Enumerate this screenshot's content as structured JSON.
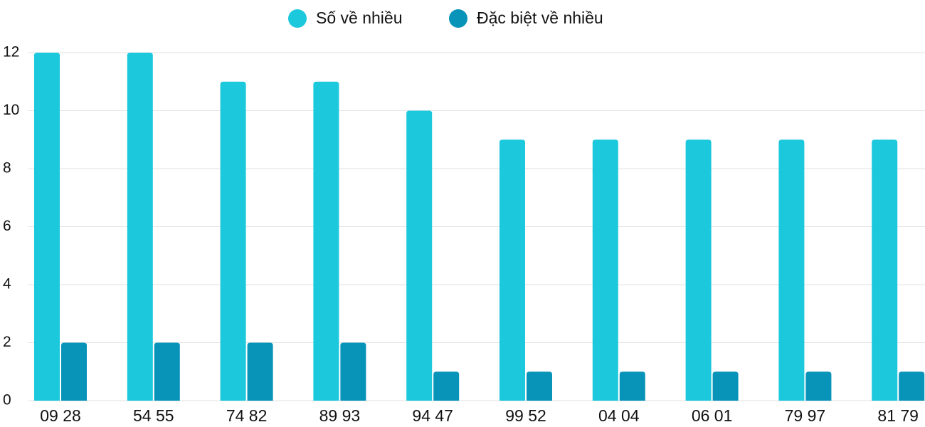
{
  "chart_data": {
    "type": "bar",
    "categories": [
      "09 28",
      "54 55",
      "74 82",
      "89 93",
      "94 47",
      "99 52",
      "04 04",
      "06 01",
      "79 97",
      "81 79"
    ],
    "series": [
      {
        "name": "Số về nhiều",
        "color": "#1bc8dc",
        "values": [
          12,
          12,
          11,
          11,
          10,
          9,
          9,
          9,
          9,
          9
        ]
      },
      {
        "name": "Đặc biệt về nhiều",
        "color": "#0894b8",
        "values": [
          2,
          2,
          2,
          2,
          1,
          1,
          1,
          1,
          1,
          1
        ]
      }
    ],
    "ylim": [
      0,
      12
    ],
    "yticks": [
      0,
      2,
      4,
      6,
      8,
      10,
      12
    ],
    "grid": true,
    "legend": "top"
  }
}
